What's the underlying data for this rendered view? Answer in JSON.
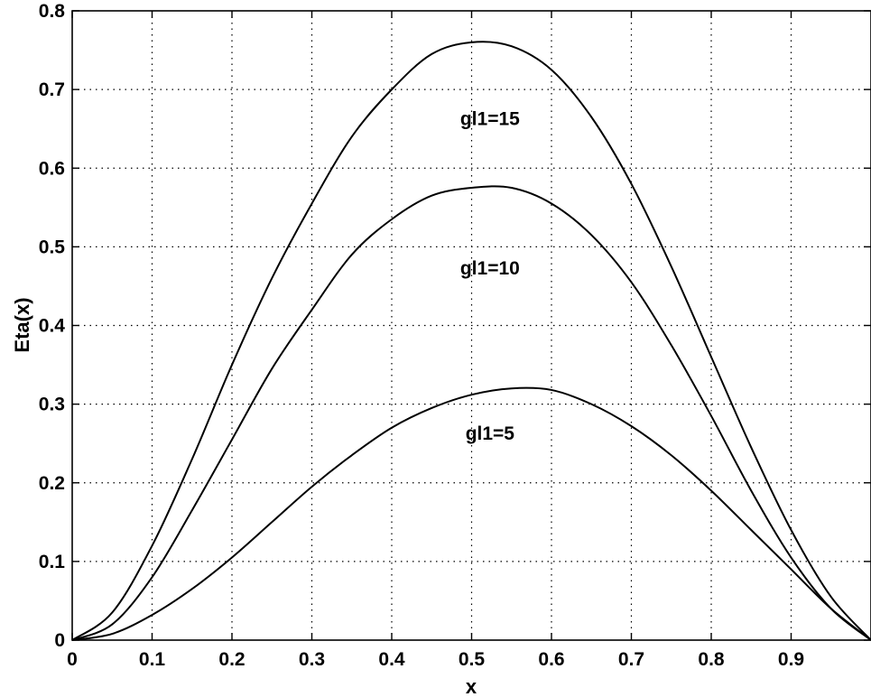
{
  "chart_data": {
    "type": "line",
    "title": "",
    "xlabel": "x",
    "ylabel": "Eta(x)",
    "xlim": [
      0,
      1
    ],
    "ylim": [
      0,
      0.8
    ],
    "grid": true,
    "xticks": [
      0,
      0.1,
      0.2,
      0.3,
      0.4,
      0.5,
      0.6,
      0.7,
      0.8,
      0.9
    ],
    "xtick_labels": [
      "0",
      "0.1",
      "0.2",
      "0.3",
      "0.4",
      "0.5",
      "0.6",
      "0.7",
      "0.8",
      "0.9"
    ],
    "yticks": [
      0,
      0.1,
      0.2,
      0.3,
      0.4,
      0.5,
      0.6,
      0.7,
      0.8
    ],
    "ytick_labels": [
      "0",
      "0.1",
      "0.2",
      "0.3",
      "0.4",
      "0.5",
      "0.6",
      "0.7",
      "0.8"
    ],
    "x": [
      0,
      0.05,
      0.1,
      0.15,
      0.2,
      0.25,
      0.3,
      0.35,
      0.4,
      0.45,
      0.5,
      0.55,
      0.6,
      0.65,
      0.7,
      0.75,
      0.8,
      0.85,
      0.9,
      0.95,
      1.0
    ],
    "series": [
      {
        "values": [
          0,
          0.035,
          0.12,
          0.23,
          0.35,
          0.46,
          0.555,
          0.64,
          0.7,
          0.745,
          0.76,
          0.755,
          0.725,
          0.665,
          0.58,
          0.475,
          0.36,
          0.245,
          0.14,
          0.055,
          0
        ]
      },
      {
        "values": [
          0,
          0.02,
          0.08,
          0.165,
          0.255,
          0.345,
          0.42,
          0.49,
          0.535,
          0.565,
          0.575,
          0.575,
          0.555,
          0.515,
          0.455,
          0.375,
          0.285,
          0.19,
          0.105,
          0.04,
          0
        ]
      },
      {
        "values": [
          0,
          0.008,
          0.032,
          0.065,
          0.105,
          0.15,
          0.195,
          0.235,
          0.27,
          0.295,
          0.312,
          0.32,
          0.318,
          0.3,
          0.272,
          0.235,
          0.19,
          0.14,
          0.09,
          0.04,
          0
        ]
      }
    ],
    "annotations": [
      {
        "text": "gl1=15",
        "x": 0.523,
        "y": 0.655
      },
      {
        "text": "gl1=10",
        "x": 0.523,
        "y": 0.465
      },
      {
        "text": "gl1=5",
        "x": 0.523,
        "y": 0.255
      }
    ]
  }
}
